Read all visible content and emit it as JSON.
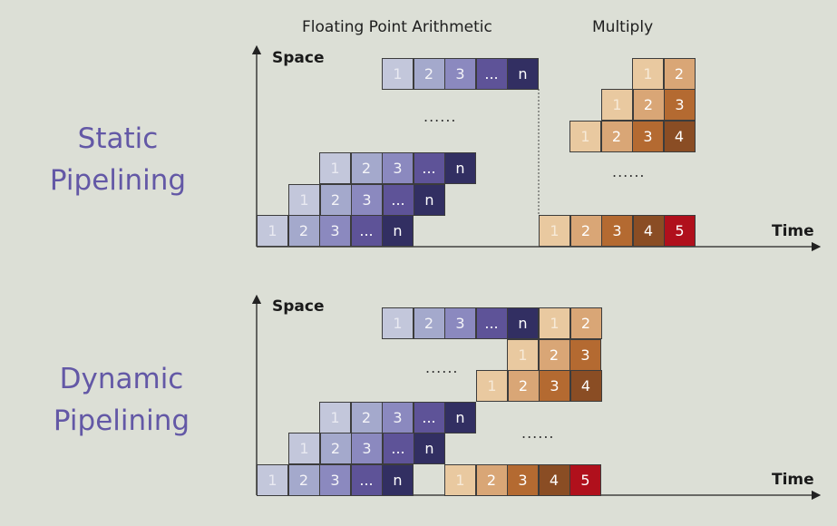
{
  "headers": {
    "fp": "Floating Point Arithmetic",
    "mult": "Multiply"
  },
  "static": {
    "line1": "Static",
    "line2": "Pipelining"
  },
  "dynamic": {
    "line1": "Dynamic",
    "line2": "Pipelining"
  },
  "axes": {
    "space": "Space",
    "time": "Time"
  },
  "ellipsis": "......",
  "fp_stages": [
    "1",
    "2",
    "3",
    "...",
    "n"
  ],
  "mult_stages": [
    "1",
    "2",
    "3",
    "4",
    "5"
  ],
  "colors": {
    "fp": [
      "#c3c7db",
      "#a4a9cc",
      "#8b89bf",
      "#5e5398",
      "#322f62"
    ],
    "fp_text": [
      "#e9eaf2",
      "#f4f4f8",
      "#f4f4f8",
      "#ffffff",
      "#ffffff"
    ],
    "mult": [
      "#e9c9a0",
      "#d9a676",
      "#b46a31",
      "#8a4d24",
      "#b0101c"
    ],
    "mult_text": [
      "#f7ead8",
      "#ffffff",
      "#ffffff",
      "#ffffff",
      "#ffffff"
    ]
  }
}
